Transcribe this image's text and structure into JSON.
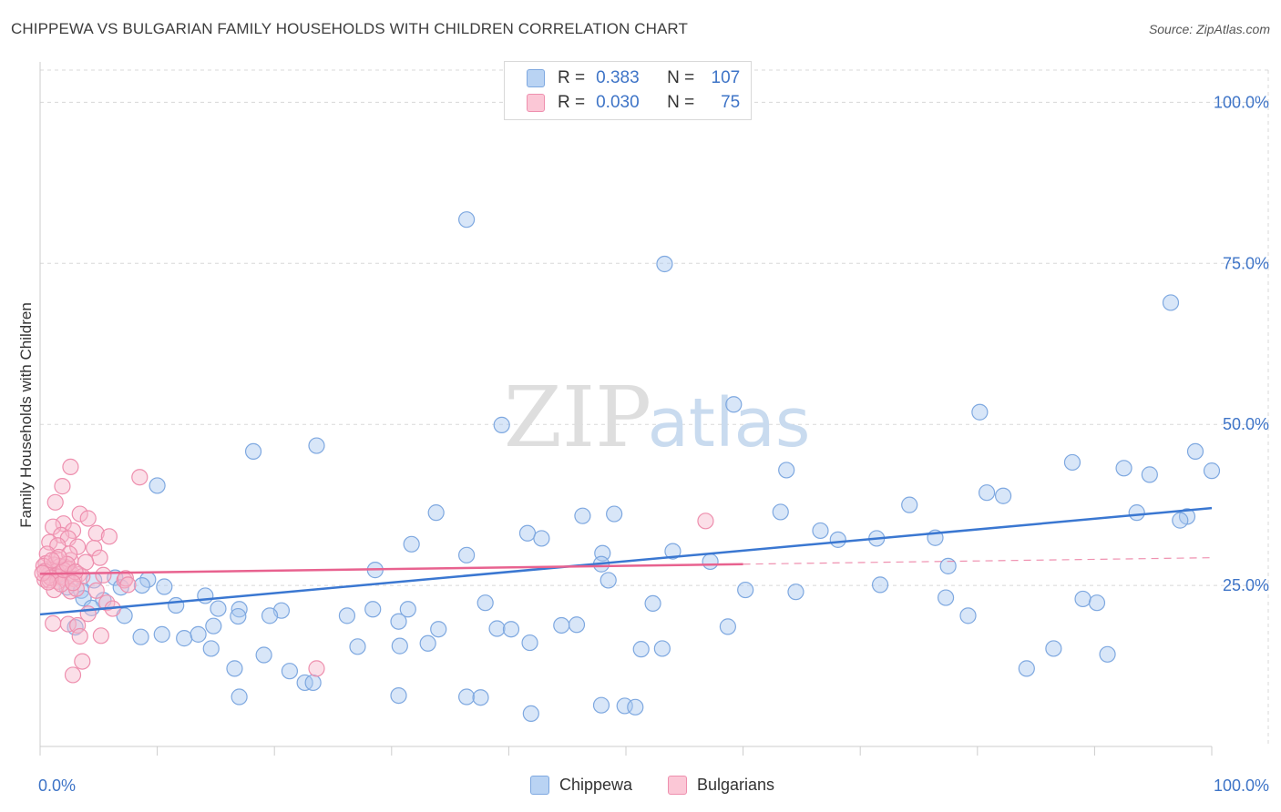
{
  "header": {
    "title": "CHIPPEWA VS BULGARIAN FAMILY HOUSEHOLDS WITH CHILDREN CORRELATION CHART",
    "source": "Source: ZipAtlas.com"
  },
  "legend": {
    "chippewa": {
      "r_label": "R =",
      "r_value": "0.383",
      "n_label": "N =",
      "n_value": "107"
    },
    "bulgarians": {
      "r_label": "R =",
      "r_value": "0.030",
      "n_label": "N =",
      "n_value": "75"
    }
  },
  "watermark": {
    "part1": "ZIP",
    "part2": "atlas"
  },
  "colors": {
    "chippewa_fill": "#a9c8f0",
    "chippewa_stroke": "#7ea8e0",
    "chippewa_line": "#3a77d1",
    "bulgarians_fill": "#f7b9cb",
    "bulgarians_stroke": "#ee8fae",
    "bulgarians_line": "#e8628f",
    "axis_label": "#3e74c7",
    "grid": "#d8d8d8"
  },
  "chart_data": {
    "type": "scatter",
    "title": "CHIPPEWA VS BULGARIAN FAMILY HOUSEHOLDS WITH CHILDREN CORRELATION CHART",
    "xlabel": "",
    "ylabel": "Family Households with Children",
    "xlim": [
      0,
      100
    ],
    "ylim": [
      0,
      105
    ],
    "x_tick_labels": [
      {
        "value": 0,
        "label": "0.0%"
      },
      {
        "value": 100,
        "label": "100.0%"
      }
    ],
    "y_tick_labels": [
      {
        "value": 25,
        "label": "25.0%"
      },
      {
        "value": 50,
        "label": "50.0%"
      },
      {
        "value": 75,
        "label": "75.0%"
      },
      {
        "value": 100,
        "label": "100.0%"
      }
    ],
    "grid": true,
    "legend_position": "top-center",
    "series": [
      {
        "name": "Chippewa",
        "trend": {
          "x": [
            0,
            100
          ],
          "y": [
            20.5,
            37.0
          ],
          "dashed_after": null
        },
        "points": [
          [
            36.4,
            81.8
          ],
          [
            53.3,
            74.9
          ],
          [
            96.5,
            68.9
          ],
          [
            59.2,
            53.1
          ],
          [
            80.2,
            51.9
          ],
          [
            39.4,
            49.9
          ],
          [
            98.6,
            45.8
          ],
          [
            18.2,
            45.8
          ],
          [
            23.6,
            46.7
          ],
          [
            88.1,
            44.1
          ],
          [
            92.5,
            43.2
          ],
          [
            94.7,
            42.2
          ],
          [
            100.0,
            42.8
          ],
          [
            63.7,
            42.9
          ],
          [
            10.0,
            40.5
          ],
          [
            80.8,
            39.4
          ],
          [
            82.2,
            38.9
          ],
          [
            74.2,
            37.5
          ],
          [
            63.2,
            36.4
          ],
          [
            33.8,
            36.3
          ],
          [
            93.6,
            36.3
          ],
          [
            97.9,
            35.7
          ],
          [
            97.3,
            35.1
          ],
          [
            46.3,
            35.8
          ],
          [
            49.0,
            36.1
          ],
          [
            41.6,
            33.1
          ],
          [
            42.8,
            32.3
          ],
          [
            66.6,
            33.5
          ],
          [
            68.1,
            32.1
          ],
          [
            71.4,
            32.3
          ],
          [
            76.4,
            32.4
          ],
          [
            31.7,
            31.4
          ],
          [
            54.0,
            30.3
          ],
          [
            48.0,
            30.0
          ],
          [
            36.4,
            29.7
          ],
          [
            28.6,
            27.4
          ],
          [
            57.2,
            28.7
          ],
          [
            47.9,
            28.3
          ],
          [
            77.5,
            28.0
          ],
          [
            48.5,
            25.8
          ],
          [
            2.3,
            24.7
          ],
          [
            4.6,
            25.8
          ],
          [
            6.4,
            26.2
          ],
          [
            9.2,
            25.9
          ],
          [
            3.5,
            24.2
          ],
          [
            6.9,
            24.7
          ],
          [
            8.7,
            25.0
          ],
          [
            10.6,
            24.8
          ],
          [
            14.1,
            23.4
          ],
          [
            3.7,
            23.0
          ],
          [
            5.4,
            22.7
          ],
          [
            11.6,
            21.9
          ],
          [
            15.2,
            21.4
          ],
          [
            17.0,
            21.3
          ],
          [
            20.6,
            21.1
          ],
          [
            31.4,
            21.3
          ],
          [
            38.0,
            22.3
          ],
          [
            52.3,
            22.2
          ],
          [
            60.2,
            24.3
          ],
          [
            64.5,
            24.0
          ],
          [
            71.7,
            25.1
          ],
          [
            77.3,
            23.1
          ],
          [
            89.0,
            22.9
          ],
          [
            90.2,
            22.3
          ],
          [
            4.4,
            21.5
          ],
          [
            7.2,
            20.3
          ],
          [
            16.9,
            20.2
          ],
          [
            14.8,
            18.7
          ],
          [
            19.6,
            20.3
          ],
          [
            26.2,
            20.3
          ],
          [
            28.4,
            21.3
          ],
          [
            30.6,
            19.4
          ],
          [
            39.0,
            18.3
          ],
          [
            34.0,
            18.2
          ],
          [
            40.2,
            18.2
          ],
          [
            41.8,
            16.1
          ],
          [
            44.5,
            18.8
          ],
          [
            45.8,
            18.9
          ],
          [
            58.7,
            18.6
          ],
          [
            79.2,
            20.3
          ],
          [
            3.0,
            18.5
          ],
          [
            8.6,
            17.0
          ],
          [
            10.4,
            17.4
          ],
          [
            12.3,
            16.8
          ],
          [
            13.5,
            17.4
          ],
          [
            14.6,
            15.2
          ],
          [
            19.1,
            14.2
          ],
          [
            27.1,
            15.5
          ],
          [
            30.7,
            15.6
          ],
          [
            33.1,
            16.0
          ],
          [
            51.3,
            15.1
          ],
          [
            53.1,
            15.2
          ],
          [
            86.5,
            15.2
          ],
          [
            91.1,
            14.3
          ],
          [
            16.6,
            12.1
          ],
          [
            21.3,
            11.7
          ],
          [
            22.6,
            9.9
          ],
          [
            23.3,
            9.9
          ],
          [
            30.6,
            7.9
          ],
          [
            17.0,
            7.7
          ],
          [
            36.4,
            7.7
          ],
          [
            37.6,
            7.6
          ],
          [
            41.9,
            5.1
          ],
          [
            47.9,
            6.4
          ],
          [
            49.9,
            6.3
          ],
          [
            50.8,
            6.1
          ],
          [
            84.2,
            12.1
          ]
        ]
      },
      {
        "name": "Bulgarians",
        "trend": {
          "x": [
            0,
            100
          ],
          "y": [
            26.8,
            29.3
          ],
          "dashed_after": 60
        },
        "points": [
          [
            2.6,
            43.4
          ],
          [
            8.5,
            41.8
          ],
          [
            1.9,
            40.4
          ],
          [
            1.3,
            37.9
          ],
          [
            3.4,
            36.1
          ],
          [
            4.1,
            35.4
          ],
          [
            2.0,
            34.6
          ],
          [
            1.1,
            34.1
          ],
          [
            4.8,
            33.1
          ],
          [
            2.8,
            33.5
          ],
          [
            1.8,
            32.8
          ],
          [
            2.4,
            32.3
          ],
          [
            5.9,
            32.6
          ],
          [
            0.8,
            31.7
          ],
          [
            1.5,
            31.2
          ],
          [
            3.2,
            31.0
          ],
          [
            4.6,
            30.8
          ],
          [
            0.6,
            29.9
          ],
          [
            5.1,
            29.3
          ],
          [
            1.4,
            29.1
          ],
          [
            2.6,
            28.9
          ],
          [
            3.9,
            28.6
          ],
          [
            0.5,
            28.4
          ],
          [
            1.2,
            28.2
          ],
          [
            1.7,
            28.0
          ],
          [
            2.1,
            27.9
          ],
          [
            2.4,
            27.6
          ],
          [
            0.9,
            27.4
          ],
          [
            1.4,
            27.2
          ],
          [
            0.6,
            27.0
          ],
          [
            1.9,
            26.9
          ],
          [
            2.7,
            26.8
          ],
          [
            3.3,
            26.7
          ],
          [
            0.7,
            26.6
          ],
          [
            1.3,
            26.5
          ],
          [
            1.6,
            26.3
          ],
          [
            2.2,
            26.1
          ],
          [
            2.9,
            26.0
          ],
          [
            0.4,
            25.9
          ],
          [
            0.8,
            25.8
          ],
          [
            1.5,
            25.6
          ],
          [
            3.6,
            26.4
          ],
          [
            5.4,
            26.6
          ],
          [
            7.2,
            25.8
          ],
          [
            4.8,
            24.2
          ],
          [
            1.2,
            24.3
          ],
          [
            2.6,
            24.1
          ],
          [
            3.1,
            24.5
          ],
          [
            5.7,
            22.3
          ],
          [
            6.2,
            21.4
          ],
          [
            1.1,
            19.1
          ],
          [
            2.4,
            19.0
          ],
          [
            3.2,
            18.8
          ],
          [
            3.4,
            17.1
          ],
          [
            4.1,
            20.6
          ],
          [
            5.2,
            17.2
          ],
          [
            3.6,
            13.2
          ],
          [
            2.8,
            11.1
          ],
          [
            23.6,
            12.1
          ],
          [
            56.8,
            35.0
          ],
          [
            7.3,
            26.1
          ],
          [
            7.5,
            25.1
          ],
          [
            2.5,
            29.9
          ],
          [
            0.3,
            28.0
          ],
          [
            0.4,
            27.2
          ],
          [
            0.9,
            26.2
          ],
          [
            1.8,
            25.2
          ],
          [
            2.0,
            27.4
          ],
          [
            2.3,
            28.3
          ],
          [
            3.0,
            27.1
          ],
          [
            1.6,
            29.4
          ],
          [
            1.0,
            28.9
          ],
          [
            0.2,
            26.9
          ],
          [
            0.7,
            25.5
          ],
          [
            2.8,
            25.4
          ]
        ]
      }
    ]
  },
  "bottom_legend": {
    "chippewa": "Chippewa",
    "bulgarians": "Bulgarians"
  }
}
